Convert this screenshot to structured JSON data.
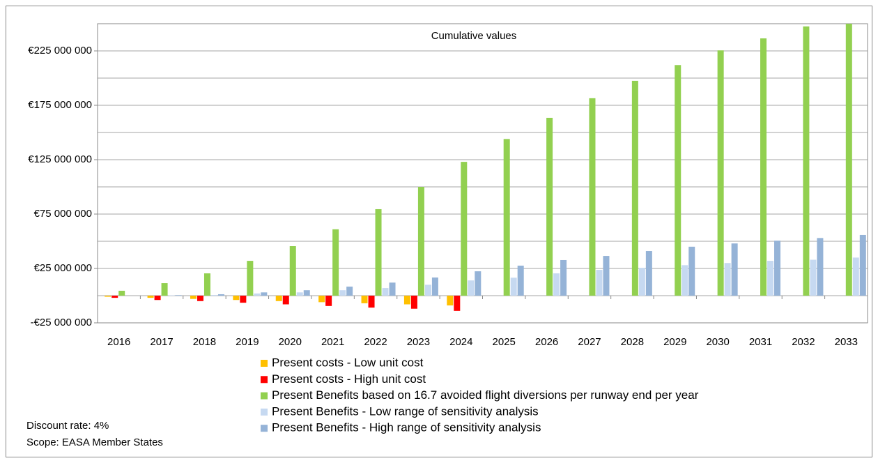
{
  "chart_data": {
    "type": "bar",
    "annotations": [
      "Cumulative values",
      "Discount rate: 4%",
      "Scope: EASA Member States"
    ],
    "categories": [
      "2016",
      "2017",
      "2018",
      "2019",
      "2020",
      "2021",
      "2022",
      "2023",
      "2024",
      "2025",
      "2026",
      "2027",
      "2028",
      "2029",
      "2030",
      "2031",
      "2032",
      "2033"
    ],
    "series": [
      {
        "name": "Present costs - Low unit cost",
        "color": "#ffc000",
        "values": [
          -1000000,
          -2000000,
          -3000000,
          -4000000,
          -5000000,
          -6000000,
          -7000000,
          -8000000,
          -9000000,
          null,
          null,
          null,
          null,
          null,
          null,
          null,
          null,
          null
        ]
      },
      {
        "name": "Present costs - High unit cost",
        "color": "#ff0000",
        "values": [
          -2000000,
          -4000000,
          -5000000,
          -6500000,
          -8000000,
          -9500000,
          -11000000,
          -12000000,
          -14000000,
          null,
          null,
          null,
          null,
          null,
          null,
          null,
          null,
          null
        ]
      },
      {
        "name": "Present Benefits based on 16.7 avoided flight diversions per runway end per year",
        "color": "#92d050",
        "values": [
          4500000,
          11500000,
          20500000,
          32000000,
          45500000,
          61000000,
          79500000,
          100000000,
          123000000,
          144000000,
          163500000,
          181500000,
          197500000,
          212000000,
          225500000,
          236500000,
          247500000,
          250000000
        ]
      },
      {
        "name": "Present Benefits - Low range of sensitivity analysis",
        "color": "#c6d9f1",
        "values": [
          null,
          300000,
          600000,
          2000000,
          3000000,
          5000000,
          7000000,
          10000000,
          14000000,
          16500000,
          20500000,
          23700000,
          25600000,
          28000000,
          30000000,
          32000000,
          33000000,
          35000000
        ]
      },
      {
        "name": "Present Benefits - High range of sensitivity analysis",
        "color": "#95b3d7",
        "values": [
          null,
          500000,
          1300000,
          3000000,
          5000000,
          8300000,
          12000000,
          16700000,
          22400000,
          27600000,
          32700000,
          36500000,
          41000000,
          45000000,
          48000000,
          50600000,
          53000000,
          55800000
        ]
      }
    ],
    "ylim": [
      -25000000,
      250000000
    ],
    "yticks": [
      {
        "value": -25000000,
        "label": "-€25 000 000"
      },
      {
        "value": 25000000,
        "label": "€25 000 000"
      },
      {
        "value": 75000000,
        "label": "€75 000 000"
      },
      {
        "value": 125000000,
        "label": "€125 000 000"
      },
      {
        "value": 175000000,
        "label": "€175 000 000"
      },
      {
        "value": 225000000,
        "label": "€225 000 000"
      }
    ],
    "ygrid": [
      -25000000,
      0,
      25000000,
      50000000,
      75000000,
      100000000,
      125000000,
      150000000,
      175000000,
      200000000,
      225000000
    ],
    "grid": true,
    "legend": "bottom"
  }
}
